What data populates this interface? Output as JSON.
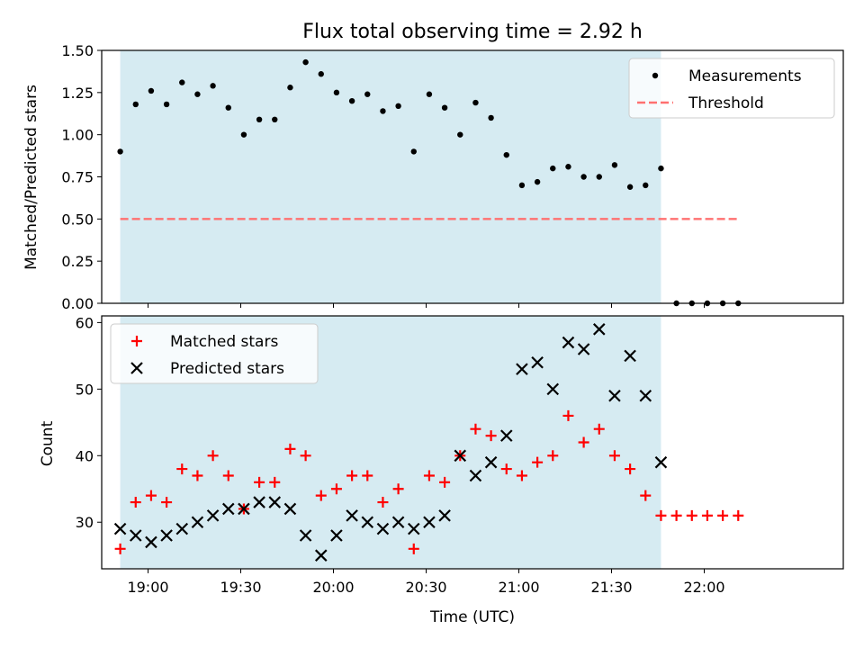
{
  "chart_data": [
    {
      "type": "scatter",
      "title": "Flux total observing time = 2.92 h",
      "ylabel": "Matched/Predicted stars",
      "xlabel": "",
      "xlim": [
        "18:45",
        "22:45"
      ],
      "ylim": [
        0,
        1.5
      ],
      "yticks": [
        "0.00",
        "0.25",
        "0.50",
        "0.75",
        "1.00",
        "1.25",
        "1.50"
      ],
      "shaded_region": {
        "start": "18:51",
        "end": "21:46",
        "color": "#add8e6"
      },
      "legend_position": "upper right",
      "series": [
        {
          "name": "Measurements",
          "marker": "dot",
          "color": "#000000",
          "x": [
            "18:51",
            "18:56",
            "19:01",
            "19:06",
            "19:11",
            "19:16",
            "19:21",
            "19:26",
            "19:31",
            "19:36",
            "19:41",
            "19:46",
            "19:51",
            "19:56",
            "20:01",
            "20:06",
            "20:11",
            "20:16",
            "20:21",
            "20:26",
            "20:31",
            "20:36",
            "20:41",
            "20:46",
            "20:51",
            "20:56",
            "21:01",
            "21:06",
            "21:11",
            "21:16",
            "21:21",
            "21:26",
            "21:31",
            "21:36",
            "21:41",
            "21:46",
            "21:51",
            "21:56",
            "22:01",
            "22:06",
            "22:11"
          ],
          "y": [
            0.9,
            1.18,
            1.26,
            1.18,
            1.31,
            1.24,
            1.29,
            1.16,
            1.0,
            1.09,
            1.09,
            1.28,
            1.43,
            1.36,
            1.25,
            1.2,
            1.24,
            1.14,
            1.17,
            0.9,
            1.24,
            1.16,
            1.0,
            1.19,
            1.1,
            0.88,
            0.7,
            0.72,
            0.8,
            0.81,
            0.75,
            0.75,
            0.82,
            0.69,
            0.7,
            0.8,
            0.0,
            0.0,
            0.0,
            0.0,
            0.0
          ]
        },
        {
          "name": "Threshold",
          "marker": "dashed-line",
          "color": "#ff7070",
          "x": [
            "18:51",
            "22:11"
          ],
          "y": [
            0.5,
            0.5
          ]
        }
      ]
    },
    {
      "type": "scatter",
      "title": "",
      "ylabel": "Count",
      "xlabel": "Time (UTC)",
      "xlim": [
        "18:45",
        "22:45"
      ],
      "ylim": [
        23,
        61
      ],
      "yticks": [
        "30",
        "40",
        "50",
        "60"
      ],
      "xticks": [
        "19:00",
        "19:30",
        "20:00",
        "20:30",
        "21:00",
        "21:30",
        "22:00"
      ],
      "shaded_region": {
        "start": "18:51",
        "end": "21:46",
        "color": "#add8e6"
      },
      "legend_position": "upper left",
      "series": [
        {
          "name": "Matched stars",
          "marker": "plus",
          "color": "#ff0000",
          "x": [
            "18:51",
            "18:56",
            "19:01",
            "19:06",
            "19:11",
            "19:16",
            "19:21",
            "19:26",
            "19:31",
            "19:36",
            "19:41",
            "19:46",
            "19:51",
            "19:56",
            "20:01",
            "20:06",
            "20:11",
            "20:16",
            "20:21",
            "20:26",
            "20:31",
            "20:36",
            "20:41",
            "20:46",
            "20:51",
            "20:56",
            "21:01",
            "21:06",
            "21:11",
            "21:16",
            "21:21",
            "21:26",
            "21:31",
            "21:36",
            "21:41",
            "21:46",
            "21:51",
            "21:56",
            "22:01",
            "22:06",
            "22:11"
          ],
          "y": [
            26,
            33,
            34,
            33,
            38,
            37,
            40,
            37,
            32,
            36,
            36,
            41,
            40,
            34,
            35,
            37,
            37,
            33,
            35,
            26,
            37,
            36,
            40,
            44,
            43,
            38,
            37,
            39,
            40,
            46,
            42,
            44,
            40,
            38,
            34,
            31,
            31,
            31,
            31,
            31,
            31
          ]
        },
        {
          "name": "Predicted stars",
          "marker": "x",
          "color": "#000000",
          "x": [
            "18:51",
            "18:56",
            "19:01",
            "19:06",
            "19:11",
            "19:16",
            "19:21",
            "19:26",
            "19:31",
            "19:36",
            "19:41",
            "19:46",
            "19:51",
            "19:56",
            "20:01",
            "20:06",
            "20:11",
            "20:16",
            "20:21",
            "20:26",
            "20:31",
            "20:36",
            "20:41",
            "20:46",
            "20:51",
            "20:56",
            "21:01",
            "21:06",
            "21:11",
            "21:16",
            "21:21",
            "21:26",
            "21:31",
            "21:36",
            "21:41",
            "21:46"
          ],
          "y": [
            29,
            28,
            27,
            28,
            29,
            30,
            31,
            32,
            32,
            33,
            33,
            32,
            28,
            25,
            28,
            31,
            30,
            29,
            30,
            29,
            30,
            31,
            40,
            37,
            39,
            43,
            53,
            54,
            50,
            57,
            56,
            59,
            49,
            55,
            49,
            39
          ]
        }
      ]
    }
  ]
}
